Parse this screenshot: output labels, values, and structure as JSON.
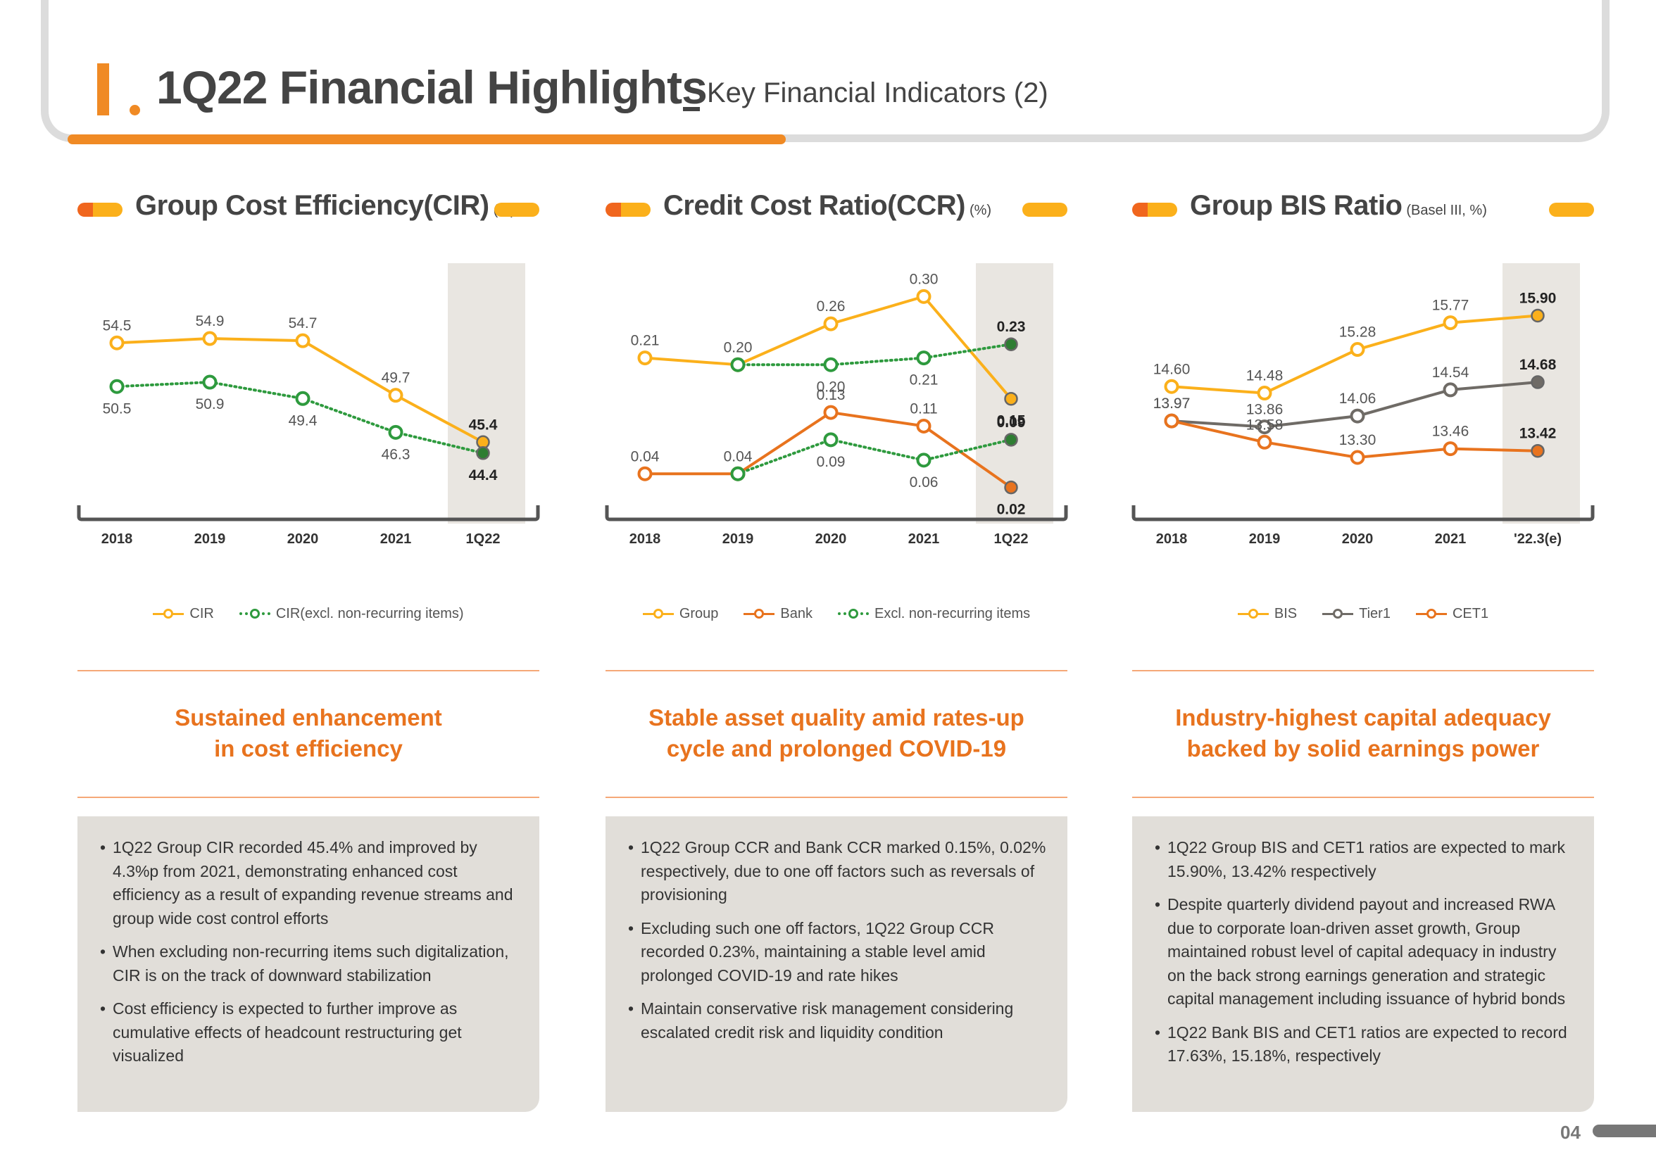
{
  "header": {
    "mark": "I",
    "title": "1Q22 Financial Highlights",
    "subtitle": "Key Financial Indicators (2)"
  },
  "sections": [
    {
      "title": "Group Cost Efficiency(CIR)",
      "unit": "(%)",
      "tagline": [
        "Sustained enhancement",
        "in cost efficiency"
      ],
      "bullets": [
        "1Q22 Group CIR recorded 45.4% and improved by 4.3%p from 2021, demonstrating enhanced cost efficiency as a result of expanding revenue streams and group wide cost control efforts",
        "When excluding non-recurring items such digitalization, CIR is on the track of downward stabilization",
        "Cost efficiency is expected to further improve as cumulative effects of headcount restructuring get visualized"
      ]
    },
    {
      "title": "Credit Cost Ratio(CCR)",
      "unit": "(%)",
      "tagline": [
        "Stable asset quality amid rates-up",
        "cycle and prolonged COVID-19"
      ],
      "bullets": [
        "1Q22 Group CCR and Bank CCR marked 0.15%, 0.02% respectively, due to one off factors such as reversals of provisioning",
        "Excluding such one off factors, 1Q22 Group CCR recorded 0.23%, maintaining a stable level amid prolonged COVID-19 and rate hikes",
        "Maintain conservative risk management considering escalated credit risk and liquidity condition"
      ]
    },
    {
      "title": "Group BIS Ratio",
      "unit": "(Basel III, %)",
      "tagline": [
        "Industry-highest capital adequacy",
        "backed by solid earnings power"
      ],
      "bullets": [
        "1Q22 Group BIS and CET1 ratios are expected to mark 15.90%, 13.42% respectively",
        "Despite quarterly dividend payout and increased RWA due to corporate loan-driven asset growth, Group maintained robust level of capital adequacy in industry on the back strong earnings generation and strategic capital management including issuance of hybrid bonds",
        "1Q22 Bank BIS and CET1 ratios are expected to record 17.63%, 15.18%, respectively"
      ]
    }
  ],
  "page_number": "04",
  "colors": {
    "orange": "#f08a24",
    "yellow": "#fbb01b",
    "dark_orange": "#e8731e",
    "green": "#2e9a3e",
    "grey": "#6f6b66",
    "panel": "#e1ded9"
  },
  "chart_data": [
    {
      "type": "line",
      "categories": [
        "2018",
        "2019",
        "2020",
        "2021",
        "1Q22"
      ],
      "highlight_last": true,
      "ylim": [
        40,
        60
      ],
      "series": [
        {
          "name": "CIR",
          "color": "#fbb01b",
          "style": "solid",
          "values": [
            54.5,
            54.9,
            54.7,
            49.7,
            45.4
          ],
          "labels": [
            "54.5",
            "54.9",
            "54.7",
            "49.7",
            "45.4"
          ],
          "label_pos": [
            "above",
            "above",
            "above",
            "above",
            "above"
          ]
        },
        {
          "name": "CIR(excl. non-recurring items)",
          "color": "#2e9a3e",
          "style": "dotted",
          "values": [
            50.5,
            50.9,
            49.4,
            46.3,
            44.4
          ],
          "labels": [
            "50.5",
            "50.9",
            "49.4",
            "46.3",
            "44.4"
          ],
          "label_pos": [
            "below",
            "below",
            "below",
            "below",
            "below"
          ]
        }
      ]
    },
    {
      "type": "line",
      "categories": [
        "2018",
        "2019",
        "2020",
        "2021",
        "1Q22"
      ],
      "highlight_last": true,
      "ylim": [
        0,
        0.32
      ],
      "series": [
        {
          "name": "Group",
          "color": "#fbb01b",
          "style": "solid",
          "values": [
            0.21,
            0.2,
            0.26,
            0.3,
            0.15
          ],
          "labels": [
            "0.21",
            "0.20",
            "0.26",
            "0.30",
            "0.15"
          ],
          "label_pos": [
            "above",
            "above",
            "above",
            "above",
            "below"
          ]
        },
        {
          "name": "Bank",
          "color": "#e8731e",
          "style": "solid",
          "values": [
            0.04,
            0.04,
            0.13,
            0.11,
            0.02
          ],
          "labels": [
            "0.04",
            "0.04",
            "0.13",
            "0.11",
            "0.02"
          ],
          "label_pos": [
            "above",
            "above",
            "above",
            "above",
            "below"
          ]
        },
        {
          "name": "Excl. non-recurring items",
          "color": "#2e9a3e",
          "style": "dotted",
          "segments": [
            {
              "values": [
                null,
                0.2,
                0.2,
                0.21,
                0.23
              ],
              "labels": [
                null,
                null,
                "0.20",
                "0.21",
                "0.23"
              ],
              "label_pos": [
                null,
                null,
                "below",
                "below",
                "above"
              ]
            },
            {
              "values": [
                null,
                0.04,
                0.09,
                0.06,
                0.09
              ],
              "labels": [
                null,
                null,
                "0.09",
                "0.06",
                "0.09"
              ],
              "label_pos": [
                null,
                null,
                "below",
                "below",
                "above"
              ]
            }
          ]
        }
      ]
    },
    {
      "type": "line",
      "categories": [
        "2018",
        "2019",
        "2020",
        "2021",
        "'22.3(e)"
      ],
      "highlight_last": true,
      "ylim": [
        12.5,
        16.5
      ],
      "series": [
        {
          "name": "BIS",
          "color": "#fbb01b",
          "style": "solid",
          "values": [
            14.6,
            14.48,
            15.28,
            15.77,
            15.9
          ],
          "labels": [
            "14.60",
            "14.48",
            "15.28",
            "15.77",
            "15.90"
          ],
          "label_pos": [
            "above",
            "above",
            "above",
            "above",
            "above"
          ]
        },
        {
          "name": "Tier1",
          "color": "#6f6b66",
          "style": "solid",
          "values": [
            13.97,
            13.86,
            14.06,
            14.54,
            14.68
          ],
          "labels": [
            "13.97",
            "13.86",
            "14.06",
            "14.54",
            "14.68"
          ],
          "label_pos": [
            "above",
            "above",
            "above",
            "above",
            "above"
          ]
        },
        {
          "name": "CET1",
          "color": "#e8731e",
          "style": "solid",
          "values": [
            13.97,
            13.58,
            13.3,
            13.46,
            13.42
          ],
          "labels": [
            "13.97",
            "13.58",
            "13.30",
            "13.46",
            "13.42"
          ],
          "label_pos": [
            "above",
            "above",
            "above",
            "above",
            "above"
          ]
        }
      ]
    }
  ]
}
